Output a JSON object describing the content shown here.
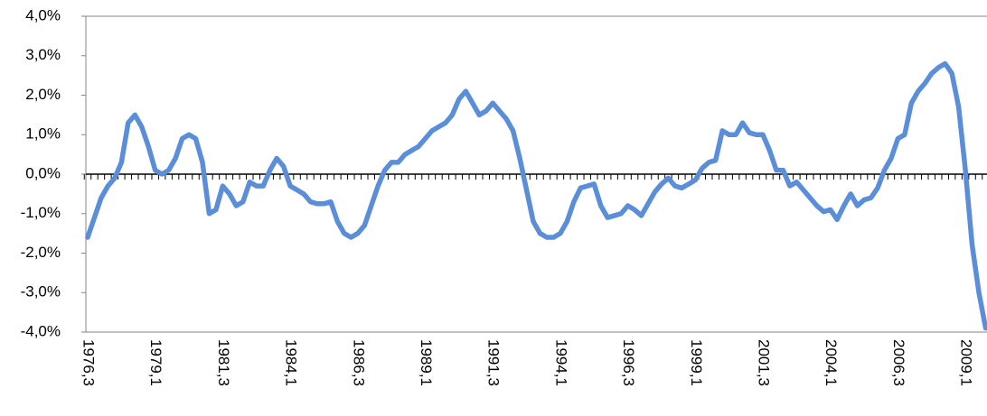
{
  "chart_data": {
    "type": "line",
    "categories": [
      "1976,3",
      null,
      null,
      null,
      null,
      null,
      null,
      null,
      null,
      null,
      "1979,1",
      null,
      null,
      null,
      null,
      null,
      null,
      null,
      null,
      null,
      "1981,3",
      null,
      null,
      null,
      null,
      null,
      null,
      null,
      null,
      null,
      "1984,1",
      null,
      null,
      null,
      null,
      null,
      null,
      null,
      null,
      null,
      "1986,3",
      null,
      null,
      null,
      null,
      null,
      null,
      null,
      null,
      null,
      "1989,1",
      null,
      null,
      null,
      null,
      null,
      null,
      null,
      null,
      null,
      "1991,3",
      null,
      null,
      null,
      null,
      null,
      null,
      null,
      null,
      null,
      "1994,1",
      null,
      null,
      null,
      null,
      null,
      null,
      null,
      null,
      null,
      "1996,3",
      null,
      null,
      null,
      null,
      null,
      null,
      null,
      null,
      null,
      "1999,1",
      null,
      null,
      null,
      null,
      null,
      null,
      null,
      null,
      null,
      "2001,3",
      null,
      null,
      null,
      null,
      null,
      null,
      null,
      null,
      null,
      "2004,1",
      null,
      null,
      null,
      null,
      null,
      null,
      null,
      null,
      null,
      "2006,3",
      null,
      null,
      null,
      null,
      null,
      null,
      null,
      null,
      null,
      "2009,1",
      null,
      null,
      null
    ],
    "values": [
      -1.6,
      -1.1,
      -0.6,
      -0.3,
      -0.1,
      0.3,
      1.3,
      1.5,
      1.2,
      0.7,
      0.1,
      0.0,
      0.1,
      0.4,
      0.9,
      1.0,
      0.9,
      0.3,
      -1.0,
      -0.9,
      -0.3,
      -0.5,
      -0.8,
      -0.7,
      -0.2,
      -0.3,
      -0.3,
      0.1,
      0.4,
      0.2,
      -0.3,
      -0.4,
      -0.5,
      -0.7,
      -0.75,
      -0.75,
      -0.7,
      -1.2,
      -1.5,
      -1.6,
      -1.5,
      -1.3,
      -0.8,
      -0.3,
      0.1,
      0.3,
      0.3,
      0.5,
      0.6,
      0.7,
      0.9,
      1.1,
      1.2,
      1.3,
      1.5,
      1.9,
      2.1,
      1.8,
      1.5,
      1.6,
      1.8,
      1.6,
      1.4,
      1.1,
      0.4,
      -0.4,
      -1.2,
      -1.5,
      -1.6,
      -1.6,
      -1.5,
      -1.2,
      -0.7,
      -0.35,
      -0.3,
      -0.25,
      -0.8,
      -1.1,
      -1.05,
      -1.0,
      -0.8,
      -0.9,
      -1.05,
      -0.75,
      -0.45,
      -0.25,
      -0.1,
      -0.3,
      -0.35,
      -0.25,
      -0.15,
      0.15,
      0.3,
      0.35,
      1.1,
      1.0,
      1.0,
      1.3,
      1.05,
      1.0,
      1.0,
      0.6,
      0.1,
      0.1,
      -0.3,
      -0.2,
      -0.4,
      -0.6,
      -0.8,
      -0.95,
      -0.9,
      -1.15,
      -0.8,
      -0.5,
      -0.8,
      -0.65,
      -0.6,
      -0.35,
      0.1,
      0.4,
      0.9,
      1.0,
      1.8,
      2.1,
      2.3,
      2.55,
      2.7,
      2.8,
      2.55,
      1.7,
      0.1,
      -1.8,
      -3.0,
      -3.9
    ],
    "color": "#5b8ed8",
    "ylim": [
      -4,
      4
    ],
    "yticks": [
      {
        "value": -4,
        "label": "-4,0%"
      },
      {
        "value": -3,
        "label": "-3,0%"
      },
      {
        "value": -2,
        "label": "-2,0%"
      },
      {
        "value": -1,
        "label": "-1,0%"
      },
      {
        "value": 0,
        "label": "0,0%"
      },
      {
        "value": 1,
        "label": "1,0%"
      },
      {
        "value": 2,
        "label": "2,0%"
      },
      {
        "value": 3,
        "label": "3,0%"
      },
      {
        "value": 4,
        "label": "4,0%"
      }
    ],
    "grid": false
  }
}
